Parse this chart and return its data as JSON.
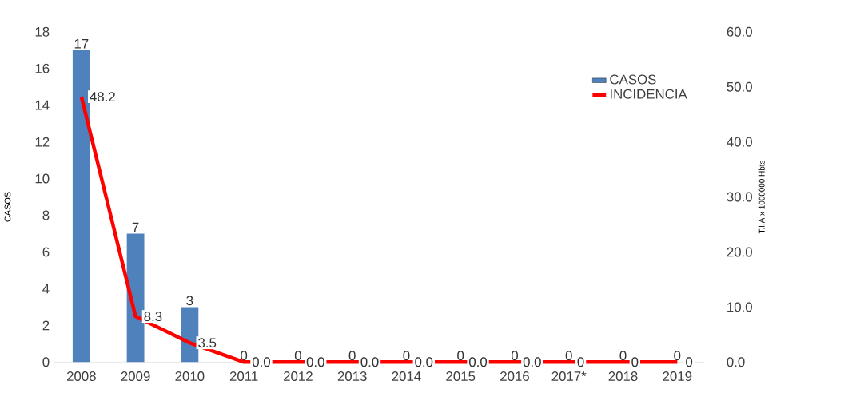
{
  "chart_data": {
    "type": "bar",
    "ylabel": "CASOS",
    "y2label": "T.I.A x  1000000 Hbts",
    "categories": [
      "2008",
      "2009",
      "2010",
      "2011",
      "2012",
      "2013",
      "2014",
      "2015",
      "2016",
      "2017*",
      "2018",
      "2019"
    ],
    "series": [
      {
        "name": "CASOS",
        "color": "#4f81bd",
        "values": [
          17,
          7,
          3,
          0,
          0,
          0,
          0,
          0,
          0,
          0,
          0,
          0
        ],
        "value_labels": [
          "17",
          "7",
          "3",
          "0",
          "0",
          "0",
          "0",
          "0",
          "0",
          "0",
          "0",
          "0"
        ]
      },
      {
        "name": "INCIDENCIA",
        "type": "line",
        "axis": "y2",
        "color": "#ff0000",
        "values": [
          48.2,
          8.3,
          3.5,
          0,
          0,
          0,
          0,
          0,
          0,
          0,
          0,
          0
        ],
        "value_labels": [
          "48.2",
          "8.3",
          "3.5",
          "0.0",
          "0.0",
          "0.0",
          "0.0",
          "0.0",
          "0.0",
          "0",
          "0",
          "0"
        ]
      }
    ],
    "ylim": [
      0,
      18
    ],
    "yticks": [
      0,
      2,
      4,
      6,
      8,
      10,
      12,
      14,
      16,
      18
    ],
    "y2lim": [
      0,
      60
    ],
    "y2ticks": [
      {
        "value": 0,
        "label": "0.0"
      },
      {
        "value": 10,
        "label": "10.0"
      },
      {
        "value": 20,
        "label": "20.0"
      },
      {
        "value": 30,
        "label": "30.0"
      },
      {
        "value": 40,
        "label": "40.0"
      },
      {
        "value": 50,
        "label": "50.0"
      },
      {
        "value": 60,
        "label": "60.0"
      }
    ],
    "legend": "top right",
    "grid": false
  }
}
